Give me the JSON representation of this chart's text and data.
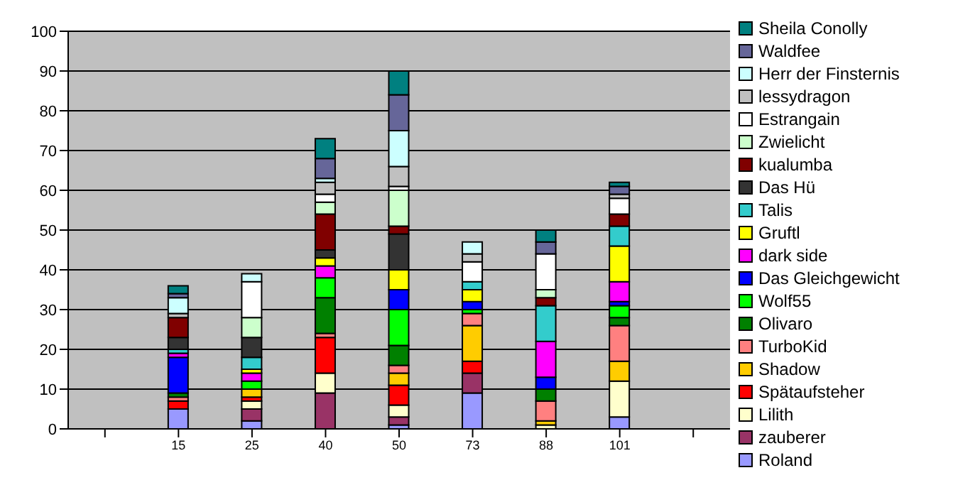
{
  "chart_data": {
    "type": "bar",
    "stacked": true,
    "categories": [
      null,
      "15",
      "25",
      "40",
      "50",
      "73",
      "88",
      "101",
      null
    ],
    "ylim": [
      0,
      100
    ],
    "yticks": [
      0,
      10,
      20,
      30,
      40,
      50,
      60,
      70,
      80,
      90,
      100
    ],
    "grid": "y",
    "legend": "right",
    "series": [
      {
        "name": "Roland",
        "color": "#9999ff",
        "values": [
          null,
          5,
          2,
          0,
          1,
          9,
          0,
          3,
          null
        ]
      },
      {
        "name": "zauberer",
        "color": "#993366",
        "values": [
          null,
          0,
          3,
          9,
          2,
          5,
          0,
          0,
          null
        ]
      },
      {
        "name": "Lilith",
        "color": "#ffffcc",
        "values": [
          null,
          0,
          2,
          5,
          3,
          0,
          1,
          9,
          null
        ]
      },
      {
        "name": "Spätaufsteher",
        "color": "#ff0000",
        "values": [
          null,
          2,
          1,
          9,
          5,
          3,
          0,
          0,
          null
        ]
      },
      {
        "name": "Shadow",
        "color": "#ffcc00",
        "values": [
          null,
          0,
          2,
          0,
          3,
          9,
          1,
          5,
          null
        ]
      },
      {
        "name": "TurboKid",
        "color": "#ff8080",
        "values": [
          null,
          1,
          0,
          1,
          2,
          3,
          5,
          9,
          null
        ]
      },
      {
        "name": "Olivaro",
        "color": "#008000",
        "values": [
          null,
          1,
          0,
          9,
          5,
          0,
          3,
          2,
          null
        ]
      },
      {
        "name": "Wolf55",
        "color": "#00ff00",
        "values": [
          null,
          0,
          2,
          5,
          9,
          1,
          0,
          3,
          null
        ]
      },
      {
        "name": "Das Gleichgewicht",
        "color": "#0000ff",
        "values": [
          null,
          9,
          0,
          0,
          5,
          2,
          3,
          1,
          null
        ]
      },
      {
        "name": "dark side",
        "color": "#ff00ff",
        "values": [
          null,
          1,
          2,
          3,
          0,
          0,
          9,
          5,
          null
        ]
      },
      {
        "name": "Gruftl",
        "color": "#ffff00",
        "values": [
          null,
          0,
          1,
          2,
          5,
          3,
          0,
          9,
          null
        ]
      },
      {
        "name": "Talis",
        "color": "#33cccc",
        "values": [
          null,
          1,
          3,
          0,
          0,
          2,
          9,
          5,
          null
        ]
      },
      {
        "name": "Das Hü",
        "color": "#333333",
        "values": [
          null,
          3,
          5,
          2,
          9,
          0,
          0,
          0,
          null
        ]
      },
      {
        "name": "kualumba",
        "color": "#800000",
        "values": [
          null,
          5,
          0,
          9,
          2,
          0,
          2,
          3,
          null
        ]
      },
      {
        "name": "Zwielicht",
        "color": "#ccffcc",
        "values": [
          null,
          0,
          5,
          3,
          9,
          0,
          2,
          0,
          null
        ]
      },
      {
        "name": "Estrangain",
        "color": "#ffffff",
        "values": [
          null,
          0,
          9,
          2,
          1,
          5,
          9,
          4,
          null
        ]
      },
      {
        "name": "lessydragon",
        "color": "#c0c0c0",
        "values": [
          null,
          1,
          0,
          3,
          5,
          2,
          0,
          1,
          null
        ]
      },
      {
        "name": "Herr der Finsternis",
        "color": "#ccffff",
        "values": [
          null,
          4,
          2,
          1,
          9,
          3,
          0,
          0,
          null
        ]
      },
      {
        "name": "Waldfee",
        "color": "#666699",
        "values": [
          null,
          1,
          0,
          5,
          9,
          0,
          3,
          2,
          null
        ]
      },
      {
        "name": "Sheila Conolly",
        "color": "#008080",
        "values": [
          null,
          2,
          0,
          5,
          6,
          0,
          3,
          1,
          null
        ]
      }
    ]
  }
}
